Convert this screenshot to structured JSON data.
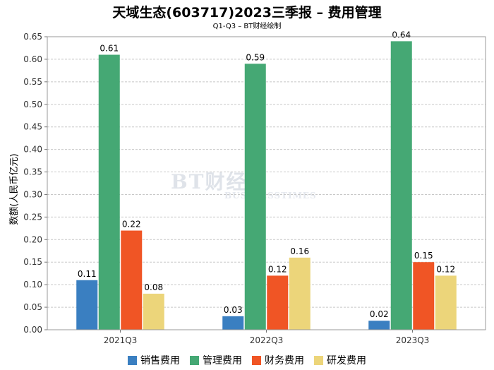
{
  "chart_data": {
    "type": "bar",
    "title": "天域生态(603717)2023三季报 – 费用管理",
    "subtitle": "Q1-Q3 – BT财经绘制",
    "ylabel": "数额(人民币亿元)",
    "xlabel": "",
    "categories": [
      "2021Q3",
      "2022Q3",
      "2023Q3"
    ],
    "ylim": [
      0,
      0.65
    ],
    "yticks": [
      0.0,
      0.05,
      0.1,
      0.15,
      0.2,
      0.25,
      0.3,
      0.35,
      0.4,
      0.45,
      0.5,
      0.55,
      0.6,
      0.65
    ],
    "grid": true,
    "legend_position": "bottom",
    "series": [
      {
        "name": "销售费用",
        "color": "#3a7fc1",
        "values": [
          0.11,
          0.03,
          0.02
        ]
      },
      {
        "name": "管理费用",
        "color": "#45a874",
        "values": [
          0.61,
          0.59,
          0.64
        ]
      },
      {
        "name": "财务费用",
        "color": "#f05525",
        "values": [
          0.22,
          0.12,
          0.15
        ]
      },
      {
        "name": "研发费用",
        "color": "#ecd57a",
        "values": [
          0.08,
          0.16,
          0.12
        ]
      }
    ]
  },
  "watermark": {
    "main": "BT财经",
    "sub": "BUSINESSTIMES"
  }
}
